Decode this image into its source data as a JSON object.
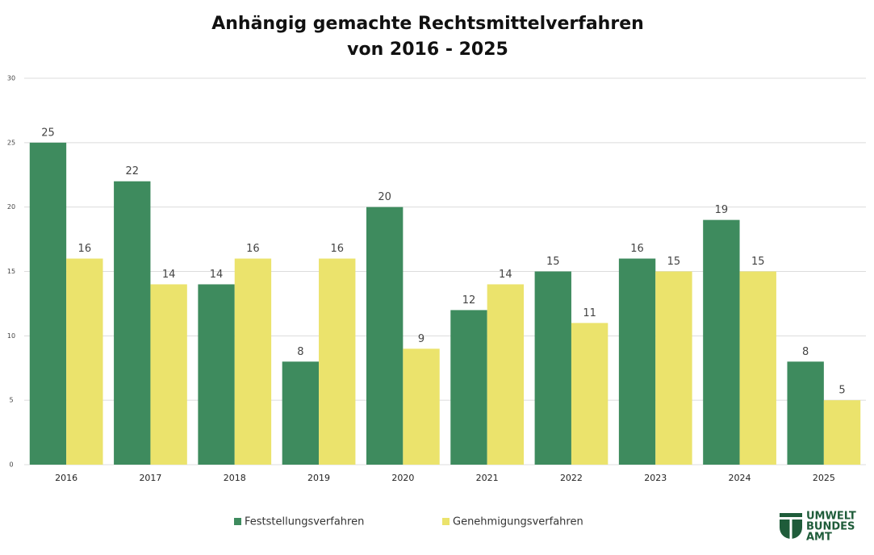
{
  "chart_data": {
    "type": "grouped-bar",
    "title": [
      "Anhängig gemachte Rechtsmittelverfahren",
      "von 2016 - 2025"
    ],
    "categories": [
      "2016",
      "2017",
      "2018",
      "2019",
      "2020",
      "2021",
      "2022",
      "2023",
      "2024",
      "2025"
    ],
    "series": [
      {
        "name": "Feststellungsverfahren",
        "color": "#3e8b5e",
        "values": [
          25,
          22,
          14,
          8,
          20,
          12,
          15,
          16,
          19,
          8
        ]
      },
      {
        "name": "Genehmigungsverfahren",
        "color": "#ebe36c",
        "values": [
          16,
          14,
          16,
          16,
          9,
          14,
          11,
          15,
          15,
          5
        ]
      }
    ],
    "ylim": [
      0,
      30
    ],
    "yticks": [
      0,
      5,
      10,
      15,
      20,
      25,
      30
    ],
    "grid": true,
    "legend": "bottom"
  },
  "logo": [
    "UMWELT",
    "BUNDES",
    "AMT"
  ]
}
